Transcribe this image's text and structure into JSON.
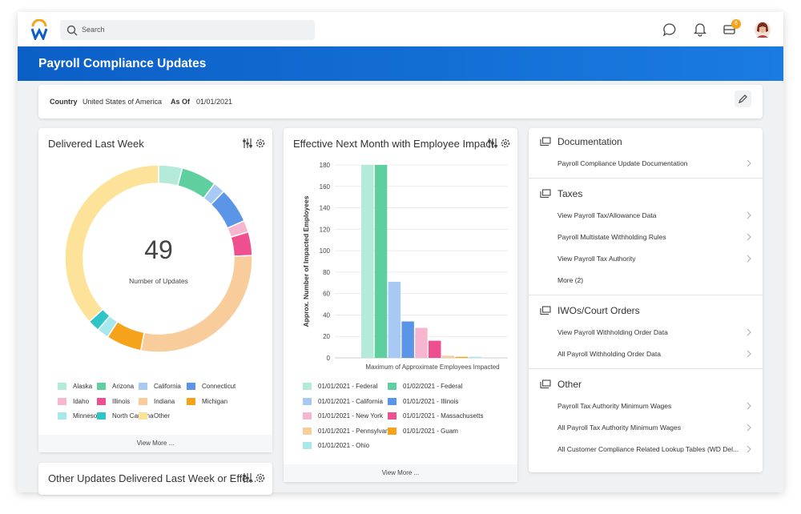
{
  "header": {
    "search_placeholder": "Search",
    "badge": "6"
  },
  "page_title": "Payroll Compliance Updates",
  "filters": [
    {
      "label": "Country",
      "value": "United States of America"
    },
    {
      "label": "As Of",
      "value": "01/01/2021"
    }
  ],
  "chart_data": [
    {
      "type": "pie",
      "title": "Delivered Last Week",
      "center_value": 49,
      "center_label": "Number of Updates",
      "footer": "View More ...",
      "categories": [
        "Alaska",
        "Arizona",
        "California",
        "Connecticut",
        "Idaho",
        "Illinois",
        "Indiana",
        "Michigan",
        "Minnesota",
        "North Carolina",
        "Other"
      ],
      "values": [
        2,
        3,
        1,
        3,
        1,
        2,
        14,
        3,
        1,
        1,
        18
      ],
      "colors": [
        "#b3ead9",
        "#5fcf9f",
        "#a9c9f5",
        "#5a95e8",
        "#f7b6cf",
        "#ee4f8f",
        "#f9cc9b",
        "#f5a31b",
        "#a6e8ec",
        "#2fc4c7",
        "#fde39a"
      ]
    },
    {
      "type": "bar",
      "title": "Effective Next Month with Employee Impact",
      "footer": "View More ...",
      "ylabel": "Approx. Number of Impacted Employees",
      "xlabel": "Maximum of Approximate Employees Impacted",
      "categories": [
        "01/01/2021 - Federal",
        "01/02/2021 - Federal",
        "01/01/2021 - California",
        "01/01/2021 - Illinois",
        "01/01/2021 - New York",
        "01/01/2021 - Massachusetts",
        "01/01/2021 - Pennsylvania",
        "01/01/2021 - Guam",
        "01/01/2021 - Ohio"
      ],
      "values": [
        180,
        180,
        71,
        34,
        28,
        16,
        2,
        1,
        1
      ],
      "colors": [
        "#b3ead9",
        "#5fcf9f",
        "#a9c9f5",
        "#5a95e8",
        "#f7b6cf",
        "#ee4f8f",
        "#f9cc9b",
        "#f5a31b",
        "#a6e8ec"
      ],
      "ylim": [
        0,
        180
      ],
      "yticks": [
        0,
        20,
        40,
        60,
        80,
        100,
        120,
        140,
        160,
        180
      ],
      "grid": true
    }
  ],
  "other_card": {
    "title": "Other Updates Delivered Last Week or Effe..."
  },
  "panel": [
    {
      "title": "Documentation",
      "items": [
        "Payroll Compliance Update Documentation"
      ]
    },
    {
      "title": "Taxes",
      "items": [
        "View Payroll Tax/Allowance Data",
        "Payroll Multistate Withholding Rules",
        "View Payroll Tax Authority",
        "More (2)"
      ]
    },
    {
      "title": "IWOs/Court Orders",
      "items": [
        "View Payroll Withholding Order Data",
        "All Payroll Withholding Order Data"
      ]
    },
    {
      "title": "Other",
      "items": [
        "Payroll Tax Authority Minimum Wages",
        "All Payroll Tax Authority Minimum Wages",
        "All Customer Compliance Related Lookup Tables (WD Del..."
      ]
    }
  ]
}
